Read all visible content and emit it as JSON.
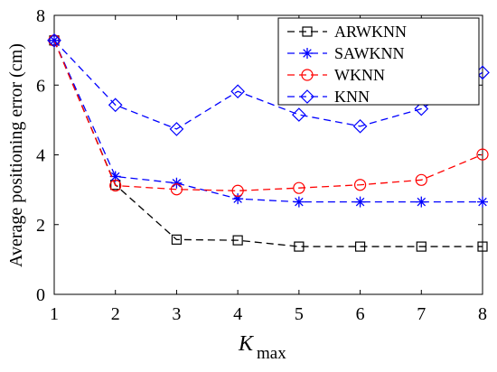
{
  "chart_data": {
    "type": "line",
    "x": [
      1,
      2,
      3,
      4,
      5,
      6,
      7,
      8
    ],
    "xlabel": "K",
    "xlabel_sub": "max",
    "ylabel": "Average  positioning  error  (cm)",
    "xlim": [
      1,
      8
    ],
    "ylim": [
      0,
      8
    ],
    "xticks": [
      1,
      2,
      3,
      4,
      5,
      6,
      7,
      8
    ],
    "yticks": [
      0,
      2,
      4,
      6,
      8
    ],
    "grid": false,
    "legend_position": "top-right",
    "series": [
      {
        "name": "ARWKNN",
        "color": "#000000",
        "marker": "square",
        "values": [
          7.28,
          3.14,
          1.57,
          1.55,
          1.37,
          1.37,
          1.37,
          1.37
        ]
      },
      {
        "name": "SAWKNN",
        "color": "#0000ff",
        "marker": "asterisk",
        "values": [
          7.28,
          3.38,
          3.19,
          2.74,
          2.65,
          2.65,
          2.65,
          2.65
        ]
      },
      {
        "name": "WKNN",
        "color": "#ff0000",
        "marker": "circle",
        "values": [
          7.28,
          3.12,
          3.01,
          2.97,
          3.05,
          3.14,
          3.28,
          4.01
        ]
      },
      {
        "name": "KNN",
        "color": "#0000ff",
        "marker": "diamond",
        "values": [
          7.28,
          5.43,
          4.74,
          5.82,
          5.15,
          4.82,
          5.32,
          6.36
        ]
      }
    ]
  }
}
